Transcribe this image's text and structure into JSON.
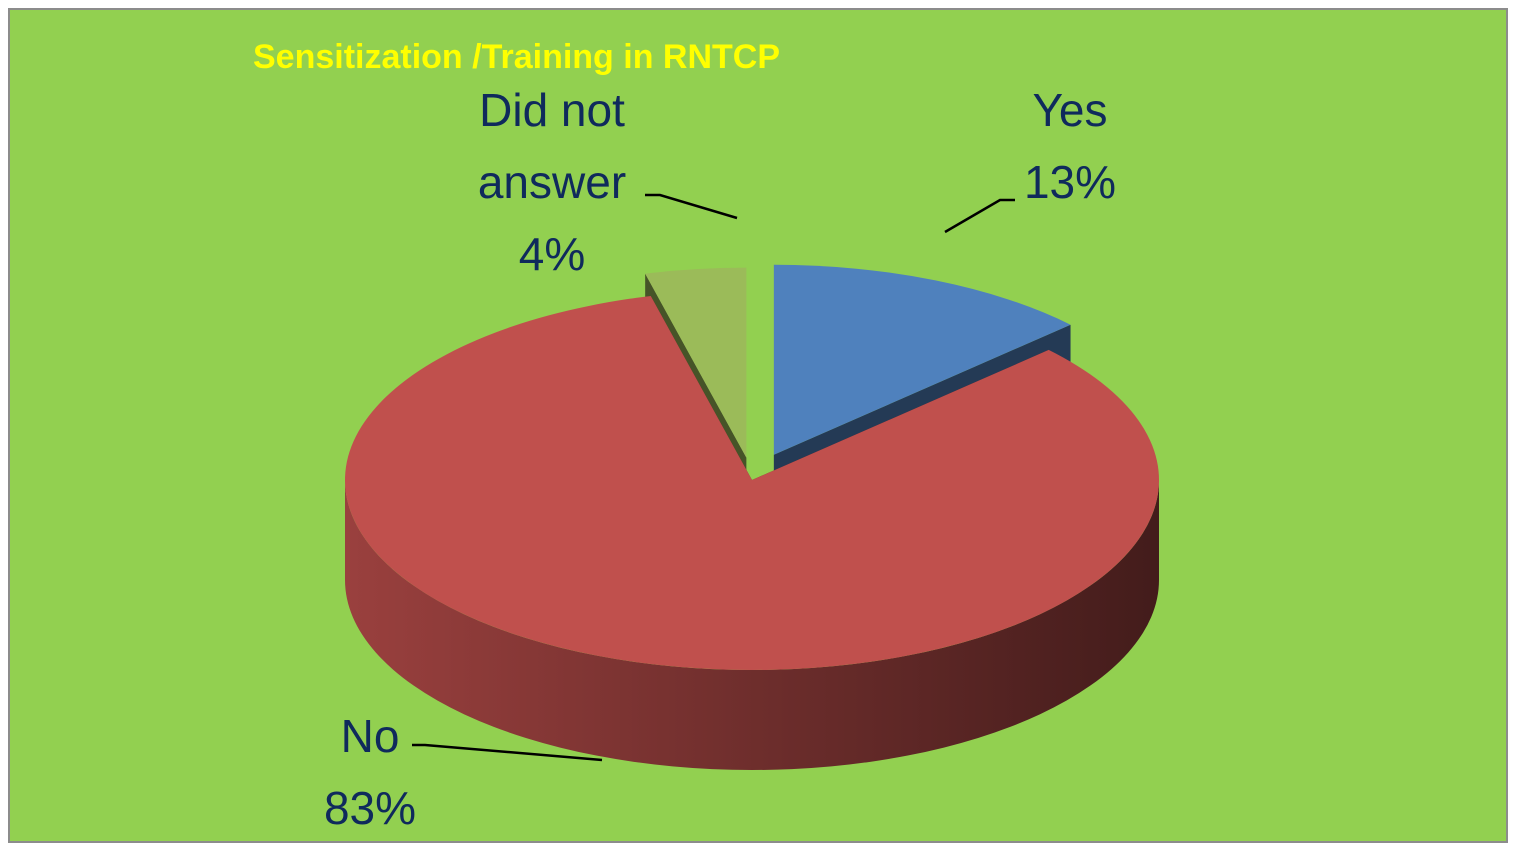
{
  "chart_data": {
    "type": "pie",
    "title": "Sensitization /Training in RNTCP",
    "categories": [
      "Yes",
      "No",
      "Did not answer"
    ],
    "values": [
      13,
      83,
      4
    ],
    "value_labels": [
      "13%",
      "83%",
      "4%"
    ],
    "colors": [
      "#4f81bd",
      "#c0504d",
      "#9bbb59"
    ]
  }
}
